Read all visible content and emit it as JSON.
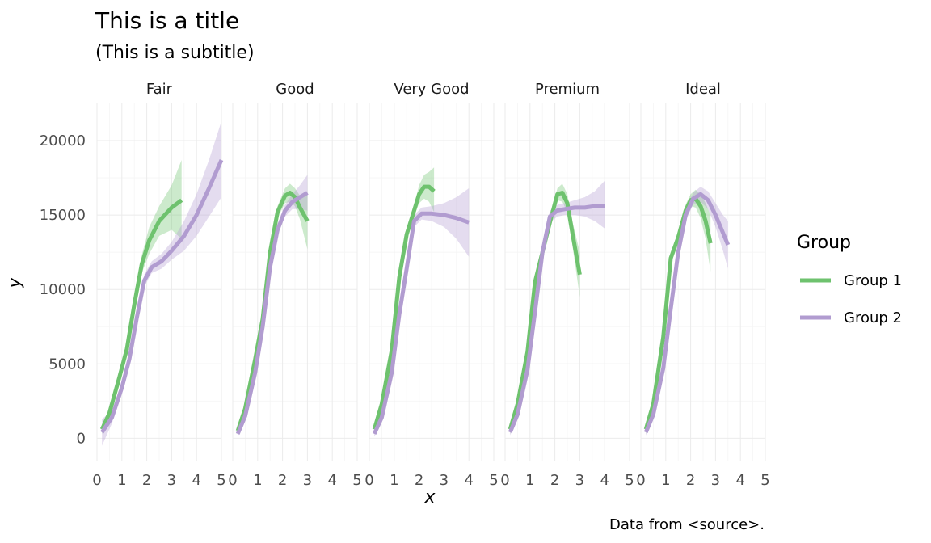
{
  "chart_data": {
    "type": "line",
    "title": "This is a title",
    "subtitle": "(This is a subtitle)",
    "caption": "Data from <source>.",
    "xlabel": "x",
    "ylabel": "y",
    "xlim": [
      0,
      5
    ],
    "ylim": [
      -1500,
      22500
    ],
    "x_ticks": [
      0,
      1,
      2,
      3,
      4,
      5
    ],
    "y_ticks": [
      0,
      5000,
      10000,
      15000,
      20000
    ],
    "grid": true,
    "legend": {
      "title": "Group",
      "position": "right"
    },
    "colors": {
      "Group 1": "#6ec26e",
      "Group 2": "#b19cd0"
    },
    "panels": [
      {
        "label": "Fair",
        "series": [
          {
            "name": "Group 1",
            "x": [
              0.2,
              0.5,
              0.9,
              1.2,
              1.5,
              1.8,
              2.1,
              2.5,
              3.0,
              3.4
            ],
            "y": [
              600,
              1700,
              4100,
              6000,
              9000,
              11700,
              13300,
              14600,
              15500,
              16000
            ],
            "lo": [
              300,
              1400,
              3700,
              5600,
              8500,
              11100,
              12400,
              13600,
              14000,
              13400
            ],
            "hi": [
              900,
              2000,
              4500,
              6400,
              9500,
              12300,
              14200,
              15600,
              17000,
              18700
            ]
          },
          {
            "name": "Group 2",
            "x": [
              0.2,
              0.6,
              1.0,
              1.3,
              1.6,
              1.9,
              2.2,
              2.6,
              3.0,
              3.5,
              4.0,
              4.5,
              5.0
            ],
            "y": [
              400,
              1400,
              3400,
              5300,
              8100,
              10600,
              11500,
              11900,
              12600,
              13600,
              15000,
              16800,
              18700
            ],
            "lo": [
              -500,
              1000,
              3000,
              4900,
              7700,
              10200,
              11100,
              11400,
              12000,
              12600,
              13600,
              14900,
              16200
            ],
            "hi": [
              1300,
              1800,
              3800,
              5700,
              8500,
              11000,
              11900,
              12400,
              13200,
              14600,
              16400,
              18700,
              21300
            ]
          }
        ]
      },
      {
        "label": "Good",
        "series": [
          {
            "name": "Group 1",
            "x": [
              0.2,
              0.5,
              0.9,
              1.2,
              1.5,
              1.8,
              2.1,
              2.3,
              2.5,
              2.7,
              3.0
            ],
            "y": [
              500,
              2000,
              5300,
              8000,
              12500,
              15200,
              16300,
              16500,
              16200,
              15500,
              14600
            ],
            "lo": [
              300,
              1700,
              4900,
              7600,
              12100,
              14800,
              15800,
              15900,
              15600,
              14700,
              12700
            ],
            "hi": [
              700,
              2300,
              5700,
              8400,
              12900,
              15600,
              16800,
              17100,
              16800,
              16300,
              16500
            ]
          },
          {
            "name": "Group 2",
            "x": [
              0.2,
              0.5,
              0.9,
              1.2,
              1.5,
              1.8,
              2.1,
              2.4,
              2.7,
              3.0
            ],
            "y": [
              300,
              1500,
              4400,
              7500,
              11500,
              14000,
              15300,
              15900,
              16200,
              16500
            ],
            "lo": [
              100,
              1200,
              4000,
              7100,
              11100,
              13600,
              14900,
              15400,
              15400,
              15300
            ],
            "hi": [
              500,
              1800,
              4800,
              7900,
              11900,
              14400,
              15700,
              16400,
              17000,
              17700
            ]
          }
        ]
      },
      {
        "label": "Very Good",
        "series": [
          {
            "name": "Group 1",
            "x": [
              0.2,
              0.5,
              0.9,
              1.2,
              1.5,
              1.8,
              2.0,
              2.2,
              2.4,
              2.6
            ],
            "y": [
              600,
              2300,
              5900,
              10800,
              13700,
              15300,
              16400,
              16900,
              16900,
              16600
            ],
            "lo": [
              300,
              2000,
              5500,
              10400,
              13300,
              14900,
              15800,
              16100,
              15900,
              15200
            ],
            "hi": [
              900,
              2600,
              6300,
              11200,
              14100,
              15700,
              17000,
              17700,
              17900,
              18200
            ]
          },
          {
            "name": "Group 2",
            "x": [
              0.2,
              0.5,
              0.9,
              1.2,
              1.5,
              1.8,
              2.1,
              2.5,
              3.0,
              3.5,
              4.0
            ],
            "y": [
              300,
              1400,
              4400,
              8300,
              11400,
              14600,
              15100,
              15100,
              15000,
              14800,
              14500
            ],
            "lo": [
              100,
              1100,
              4000,
              7900,
              11000,
              14200,
              14700,
              14600,
              14200,
              13400,
              12200
            ],
            "hi": [
              500,
              1700,
              4800,
              8700,
              11800,
              15000,
              15500,
              15600,
              15800,
              16200,
              16800
            ]
          }
        ]
      },
      {
        "label": "Premium",
        "series": [
          {
            "name": "Group 1",
            "x": [
              0.2,
              0.5,
              0.9,
              1.2,
              1.5,
              1.8,
              2.1,
              2.3,
              2.5,
              2.7,
              3.0
            ],
            "y": [
              600,
              2300,
              5800,
              10500,
              12500,
              14500,
              16400,
              16500,
              15800,
              13800,
              11000
            ],
            "lo": [
              300,
              2000,
              5400,
              10100,
              12100,
              14100,
              16000,
              15900,
              15200,
              13000,
              9500
            ],
            "hi": [
              900,
              2600,
              6200,
              10900,
              12900,
              14900,
              16800,
              17100,
              16400,
              14600,
              12500
            ]
          },
          {
            "name": "Group 2",
            "x": [
              0.2,
              0.5,
              0.9,
              1.2,
              1.5,
              1.8,
              2.1,
              2.4,
              2.8,
              3.2,
              3.6,
              4.0
            ],
            "y": [
              400,
              1600,
              4600,
              8500,
              12500,
              14900,
              15300,
              15400,
              15500,
              15500,
              15600,
              15600
            ],
            "lo": [
              200,
              1300,
              4200,
              8100,
              12100,
              14500,
              14900,
              15000,
              15000,
              14900,
              14600,
              14100
            ],
            "hi": [
              600,
              1900,
              5000,
              8900,
              12900,
              15300,
              15700,
              15800,
              16000,
              16200,
              16600,
              17300
            ]
          }
        ]
      },
      {
        "label": "Ideal",
        "series": [
          {
            "name": "Group 1",
            "x": [
              0.2,
              0.5,
              0.9,
              1.2,
              1.5,
              1.8,
              2.0,
              2.2,
              2.4,
              2.6,
              2.8
            ],
            "y": [
              600,
              2300,
              6800,
              12100,
              13500,
              15300,
              16000,
              16100,
              15600,
              14600,
              13100
            ],
            "lo": [
              300,
              2000,
              6400,
              11700,
              13100,
              14900,
              15600,
              15500,
              14800,
              13400,
              11200
            ],
            "hi": [
              900,
              2600,
              7200,
              12500,
              13900,
              15700,
              16400,
              16700,
              16400,
              15800,
              15000
            ]
          },
          {
            "name": "Group 2",
            "x": [
              0.2,
              0.5,
              0.9,
              1.2,
              1.5,
              1.8,
              2.1,
              2.4,
              2.7,
              3.0,
              3.3,
              3.5
            ],
            "y": [
              400,
              1600,
              4700,
              8700,
              12500,
              15000,
              16100,
              16400,
              16000,
              15000,
              13800,
              13000
            ],
            "lo": [
              200,
              1300,
              4300,
              8300,
              12100,
              14600,
              15700,
              15900,
              15400,
              14200,
              12600,
              11400
            ],
            "hi": [
              600,
              1900,
              5100,
              9100,
              12900,
              15400,
              16500,
              16900,
              16600,
              15800,
              15000,
              14600
            ]
          }
        ]
      }
    ]
  }
}
